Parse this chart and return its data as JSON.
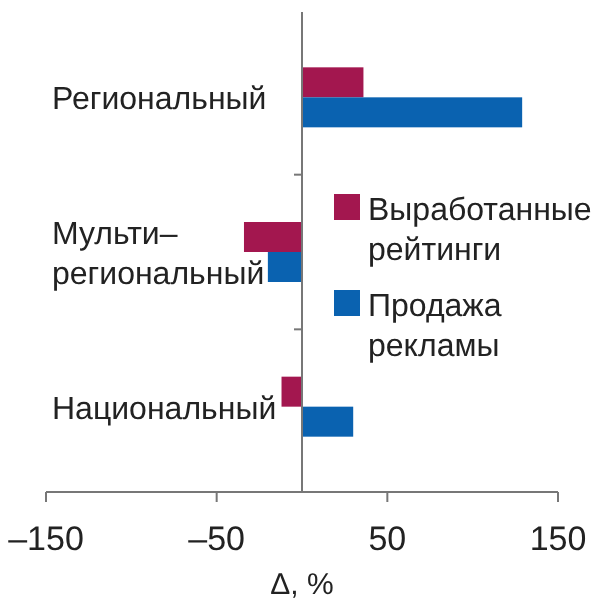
{
  "chart_data": {
    "type": "bar",
    "orientation": "horizontal",
    "categories": [
      "Региональный",
      "Мульти–\nрегиональный",
      "Национальный"
    ],
    "series": [
      {
        "name": "Выработанные рейтинги",
        "color": "#a3174f",
        "values": [
          36,
          -34,
          -12
        ]
      },
      {
        "name": "Продажа рекламы",
        "color": "#0a62b0",
        "values": [
          129,
          -20,
          30
        ]
      }
    ],
    "xlim": [
      -150,
      150
    ],
    "xticks": [
      {
        "value": -150,
        "label": "–150"
      },
      {
        "value": -50,
        "label": "–50"
      },
      50,
      150
    ],
    "xlabel": "Δ, %",
    "legend": "right",
    "grid": false
  }
}
